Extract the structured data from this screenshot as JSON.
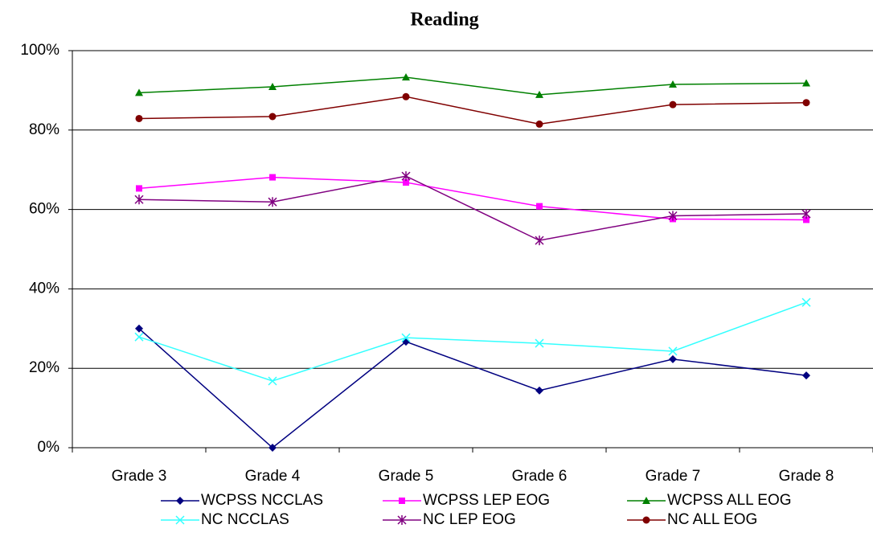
{
  "chart_data": {
    "type": "line",
    "title": "Reading",
    "categories": [
      "Grade 3",
      "Grade 4",
      "Grade 5",
      "Grade 6",
      "Grade 7",
      "Grade 8"
    ],
    "series": [
      {
        "name": "WCPSS NCCLAS",
        "color": "#000080",
        "marker": "diamond",
        "values": [
          30.0,
          0.0,
          26.7,
          14.4,
          22.3,
          18.2
        ]
      },
      {
        "name": "WCPSS LEP EOG",
        "color": "#ff00ff",
        "marker": "square",
        "values": [
          65.3,
          68.1,
          66.8,
          60.8,
          57.6,
          57.4
        ]
      },
      {
        "name": "WCPSS ALL EOG",
        "color": "#008000",
        "marker": "triangle",
        "values": [
          89.4,
          90.9,
          93.3,
          88.9,
          91.5,
          91.8
        ]
      },
      {
        "name": "NC NCCLAS",
        "color": "#33ffff",
        "marker": "x",
        "values": [
          27.9,
          16.8,
          27.7,
          26.3,
          24.3,
          36.6
        ]
      },
      {
        "name": "NC LEP EOG",
        "color": "#800080",
        "marker": "star",
        "values": [
          62.5,
          61.9,
          68.4,
          52.2,
          58.4,
          58.9
        ]
      },
      {
        "name": "NC ALL EOG",
        "color": "#800000",
        "marker": "circle",
        "values": [
          82.9,
          83.4,
          88.4,
          81.5,
          86.4,
          86.9
        ]
      }
    ],
    "ylim": [
      0,
      100
    ],
    "yticks": [
      {
        "value": 0,
        "label": "0%"
      },
      {
        "value": 20,
        "label": "20%"
      },
      {
        "value": 40,
        "label": "40%"
      },
      {
        "value": 60,
        "label": "60%"
      },
      {
        "value": 80,
        "label": "80%"
      },
      {
        "value": 100,
        "label": "100%"
      }
    ],
    "grid": true,
    "legend": "bottom"
  }
}
